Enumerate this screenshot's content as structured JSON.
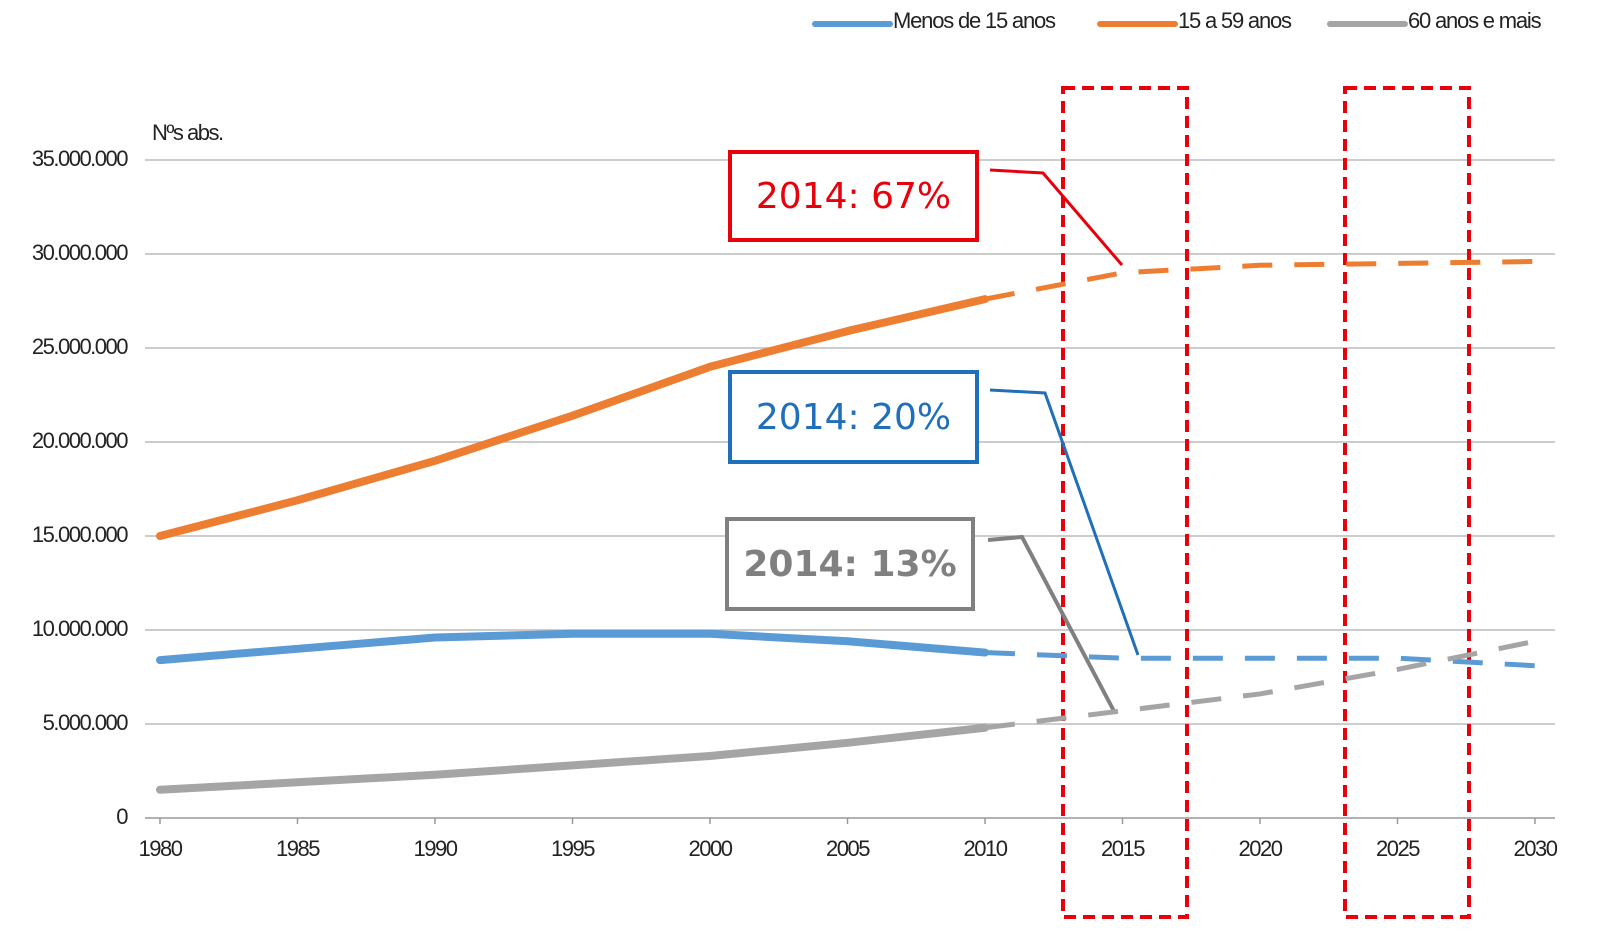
{
  "chart_data": {
    "type": "line",
    "ylabel": "Nºs abs.",
    "x": [
      1980,
      1985,
      1990,
      1995,
      2000,
      2005,
      2010,
      2015,
      2020,
      2025,
      2030
    ],
    "xlim": [
      1980,
      2030
    ],
    "xticks": [
      1980,
      1985,
      1990,
      1995,
      2000,
      2005,
      2010,
      2015,
      2020,
      2025,
      2030
    ],
    "ylim": [
      0,
      35000000
    ],
    "yticks": [
      0,
      {
        "value": 5000000,
        "label": "5.000.000"
      },
      {
        "value": 10000000,
        "label": "10.000.000"
      },
      {
        "value": 15000000,
        "label": "15.000.000"
      },
      {
        "value": 20000000,
        "label": "20.000.000"
      },
      {
        "value": 25000000,
        "label": "25.000.000"
      },
      {
        "value": 30000000,
        "label": "30.000.000"
      },
      {
        "value": 35000000,
        "label": "35.000.000"
      }
    ],
    "grid": true,
    "legend": "top-right",
    "dashed_from": 2010,
    "series": [
      {
        "name": "Menos de 15 anos",
        "color": "#5b9bd5",
        "values": [
          8400000,
          9000000,
          9600000,
          9800000,
          9800000,
          9400000,
          8800000,
          8500000,
          8500000,
          8500000,
          8100000
        ]
      },
      {
        "name": "15 a 59 anos",
        "color": "#ed7d31",
        "values": [
          15000000,
          16900000,
          19000000,
          21400000,
          24000000,
          25900000,
          27600000,
          29000000,
          29400000,
          29500000,
          29600000
        ]
      },
      {
        "name": "60 anos e mais",
        "color": "#a5a5a5",
        "values": [
          1500000,
          1900000,
          2300000,
          2800000,
          3300000,
          4000000,
          4800000,
          5700000,
          6600000,
          7900000,
          9400000
        ]
      }
    ],
    "annotations": [
      {
        "text": "2014: 67%",
        "color": "#e8000b"
      },
      {
        "text": "2014: 20%",
        "color": "#1f6fba"
      },
      {
        "text": "2014: 13%",
        "color": "#808080"
      }
    ]
  }
}
